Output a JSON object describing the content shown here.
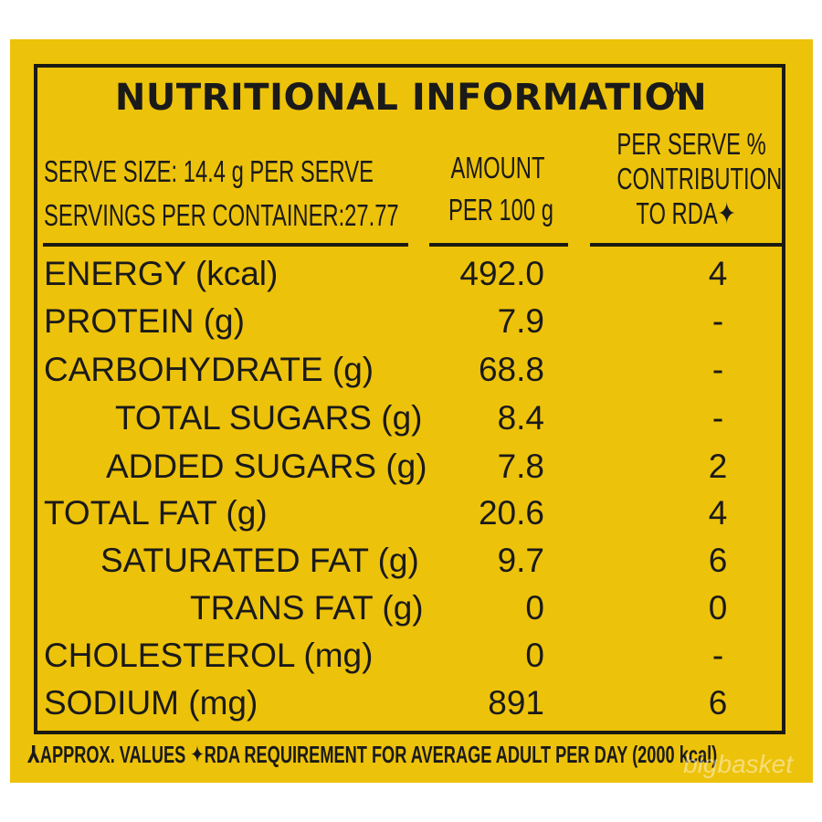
{
  "title": "NUTRITIONAL INFORMATION",
  "title_mark": "⅄",
  "serve_size": "SERVE SIZE: 14.4 g PER SERVE",
  "servings": "SERVINGS PER CONTAINER:27.77",
  "col_amount": [
    "AMOUNT",
    "PER 100 g"
  ],
  "col_rda": [
    "PER SERVE %",
    "CONTRIBUTION",
    "TO RDA✦"
  ],
  "rows": [
    {
      "label": "ENERGY (kcal)",
      "amount": "492.0",
      "rda": "4",
      "indent": 0
    },
    {
      "label": "PROTEIN (g)",
      "amount": "7.9",
      "rda": "-",
      "indent": 0
    },
    {
      "label": "CARBOHYDRATE (g)",
      "amount": "68.8",
      "rda": "-",
      "indent": 0
    },
    {
      "label": "TOTAL SUGARS (g)",
      "amount": "8.4",
      "rda": "-",
      "indent": 1
    },
    {
      "label": "ADDED SUGARS (g)",
      "amount": "7.8",
      "rda": "2",
      "indent": 1
    },
    {
      "label": "TOTAL FAT (g)",
      "amount": "20.6",
      "rda": "4",
      "indent": 0
    },
    {
      "label": "SATURATED FAT (g)",
      "amount": "9.7",
      "rda": "6",
      "indent": 1
    },
    {
      "label": "TRANS FAT (g)",
      "amount": "0",
      "rda": "0",
      "indent": 1
    },
    {
      "label": "CHOLESTEROL (mg)",
      "amount": "0",
      "rda": "-",
      "indent": 0
    },
    {
      "label": "SODIUM (mg)",
      "amount": "891",
      "rda": "6",
      "indent": 0
    }
  ],
  "footnote": "⅄APPROX. VALUES ✦RDA REQUIREMENT FOR AVERAGE ADULT PER DAY (2000 kcal)",
  "watermark": "bigbasket",
  "colors": {
    "panel": "#edc20a",
    "ink": "#1b1a12"
  }
}
